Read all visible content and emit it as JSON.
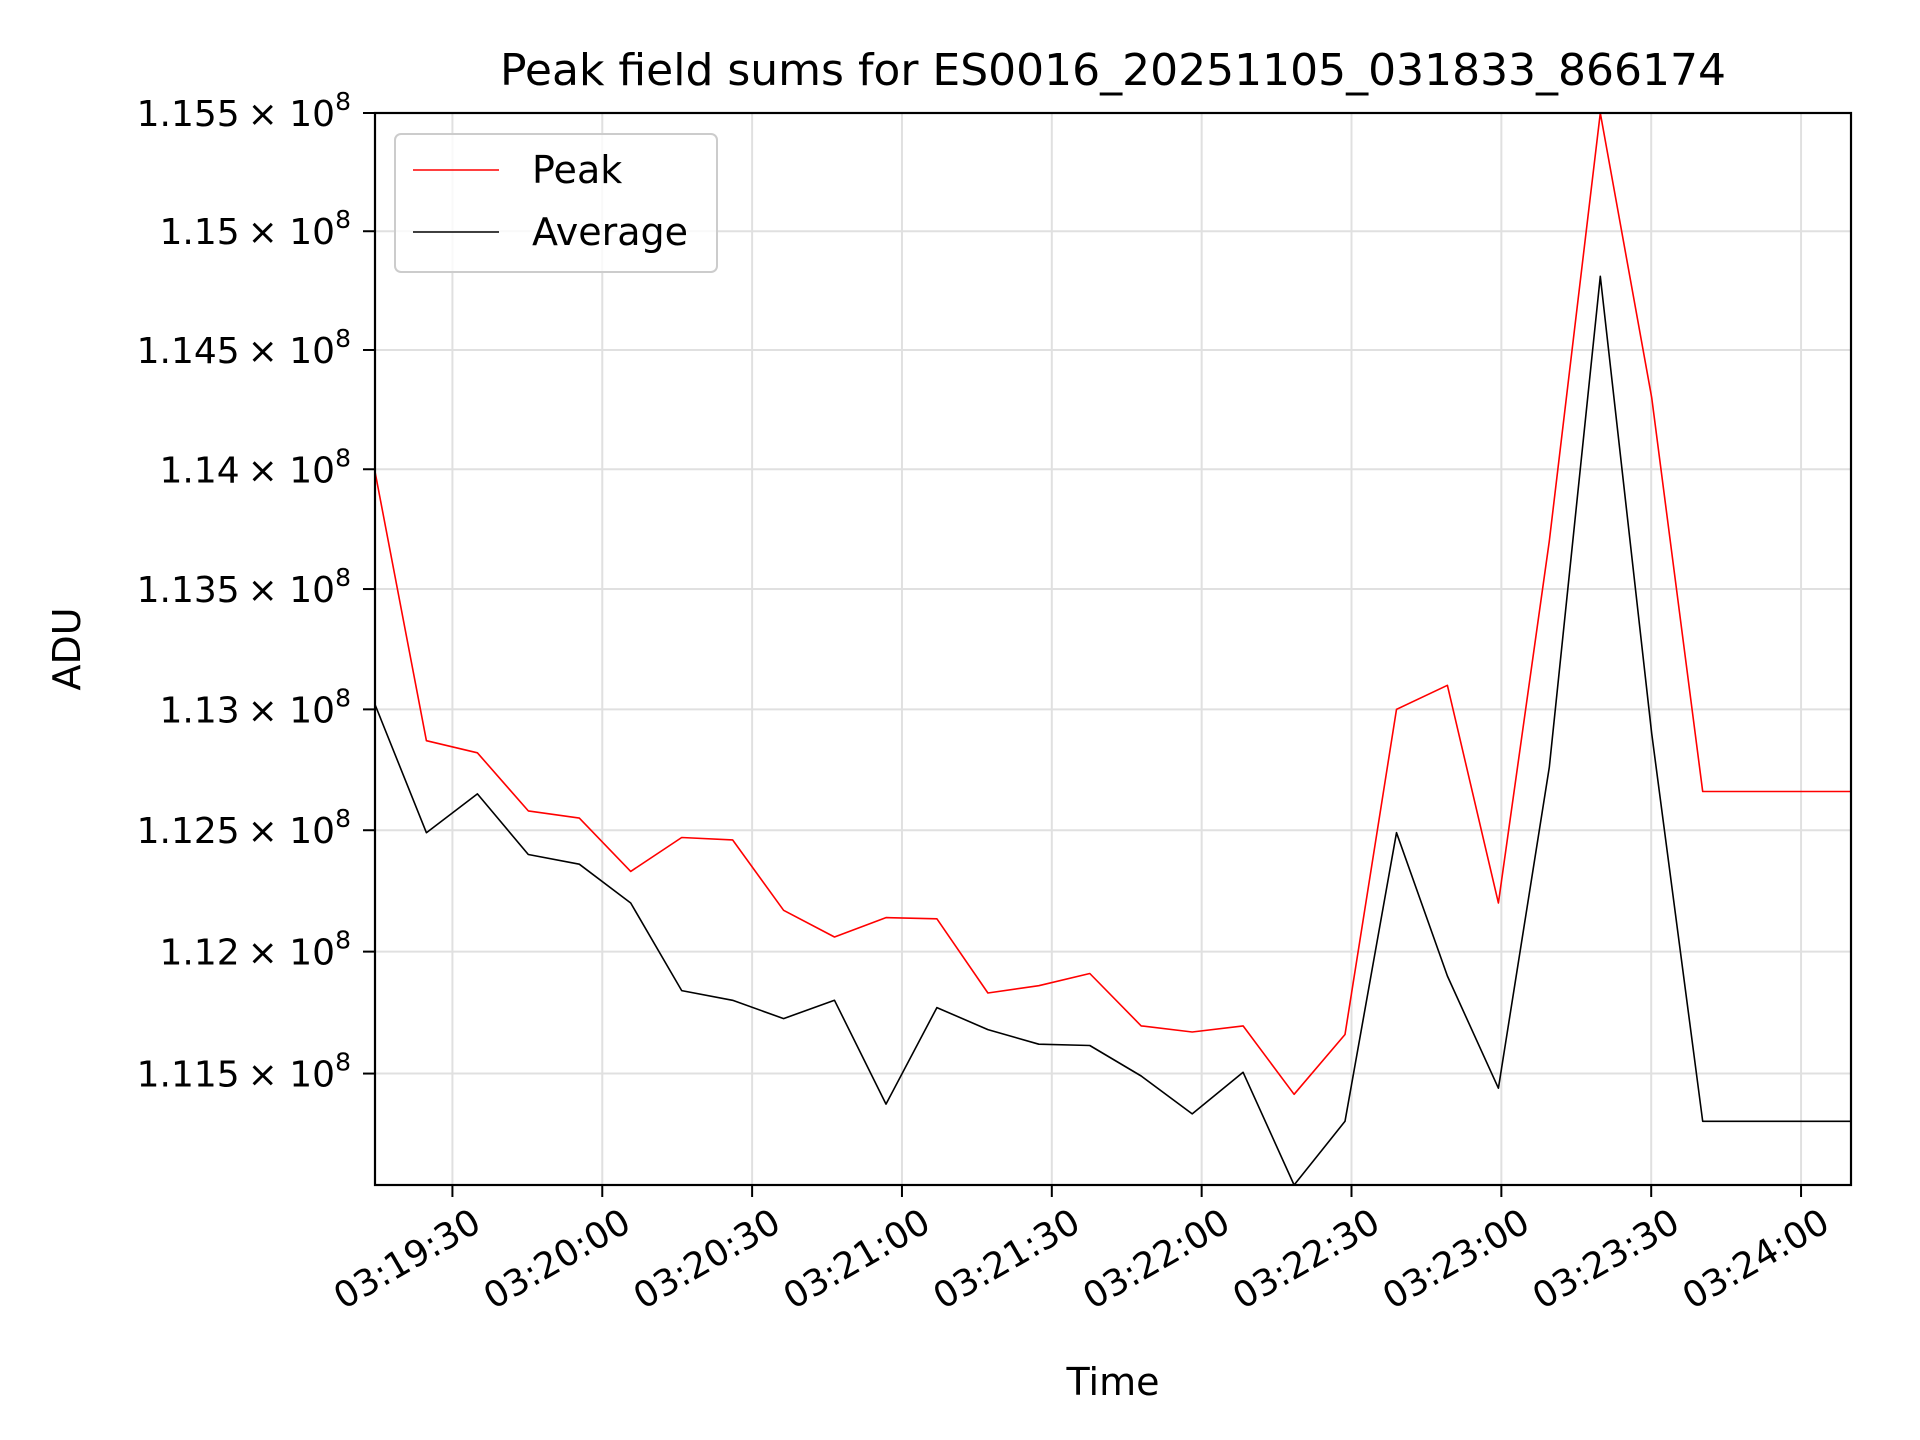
{
  "chart_data": {
    "type": "line",
    "title": "Peak field sums for ES0016_20251105_031833_866174",
    "xlabel": "Time",
    "ylabel": "ADU",
    "x_tick_labels": [
      "03:19:30",
      "03:20:00",
      "03:20:30",
      "03:21:00",
      "03:21:30",
      "03:22:00",
      "03:22:30",
      "03:23:00",
      "03:23:30",
      "03:24:00"
    ],
    "y_tick_labels": [
      {
        "value": 111500000,
        "mantissa": "1.115",
        "base": "× 10",
        "exp": "8"
      },
      {
        "value": 112000000,
        "mantissa": "1.12",
        "base": "× 10",
        "exp": "8"
      },
      {
        "value": 112500000,
        "mantissa": "1.125",
        "base": "× 10",
        "exp": "8"
      },
      {
        "value": 113000000,
        "mantissa": "1.13",
        "base": "× 10",
        "exp": "8"
      },
      {
        "value": 113500000,
        "mantissa": "1.135",
        "base": "× 10",
        "exp": "8"
      },
      {
        "value": 114000000,
        "mantissa": "1.14",
        "base": "× 10",
        "exp": "8"
      },
      {
        "value": 114500000,
        "mantissa": "1.145",
        "base": "× 10",
        "exp": "8"
      },
      {
        "value": 115000000,
        "mantissa": "1.15",
        "base": "× 10",
        "exp": "8"
      },
      {
        "value": 115500000,
        "mantissa": "1.155",
        "base": "× 10",
        "exp": "8"
      }
    ],
    "xlim": [
      "03:19:14.5",
      "03:24:10.0"
    ],
    "ylim": [
      111045000,
      115500000
    ],
    "y_scale": "log",
    "grid": true,
    "legend_position": "top-left",
    "x": [
      "03:19:14.5",
      "03:19:24.8",
      "03:19:35.0",
      "03:19:45.2",
      "03:19:55.4",
      "03:20:05.7",
      "03:20:15.9",
      "03:20:26.1",
      "03:20:36.3",
      "03:20:46.5",
      "03:20:56.8",
      "03:21:07.0",
      "03:21:17.2",
      "03:21:27.4",
      "03:21:37.6",
      "03:21:47.9",
      "03:21:58.1",
      "03:22:08.3",
      "03:22:18.5",
      "03:22:28.7",
      "03:22:39.0",
      "03:22:49.2",
      "03:22:59.4",
      "03:23:09.6",
      "03:23:19.8",
      "03:23:30.1",
      "03:23:40.3",
      "03:23:50.5",
      "03:24:00.7",
      "03:24:10.0"
    ],
    "series": [
      {
        "name": "Peak",
        "color": "#ff0000",
        "values": [
          113990000,
          112870000,
          112820000,
          112580000,
          112550000,
          112330000,
          112470000,
          112460000,
          112170000,
          112060000,
          112140000,
          112135000,
          111830000,
          111860000,
          111910000,
          111695000,
          111670000,
          111695000,
          111415000,
          111660000,
          113000000,
          113100000,
          112200000,
          113700000,
          115500000,
          114300000,
          112660000,
          112660000,
          112660000,
          112660000
        ]
      },
      {
        "name": "Average",
        "color": "#000000",
        "values": [
          113020000,
          112490000,
          112650000,
          112400000,
          112360000,
          112200000,
          111840000,
          111800000,
          111725000,
          111800000,
          111375000,
          111770000,
          111680000,
          111620000,
          111615000,
          111490000,
          111335000,
          111505000,
          111045000,
          111305000,
          112490000,
          111900000,
          111440000,
          112760000,
          114810000,
          112900000,
          111305000,
          111305000,
          111305000,
          111305000
        ]
      }
    ]
  }
}
